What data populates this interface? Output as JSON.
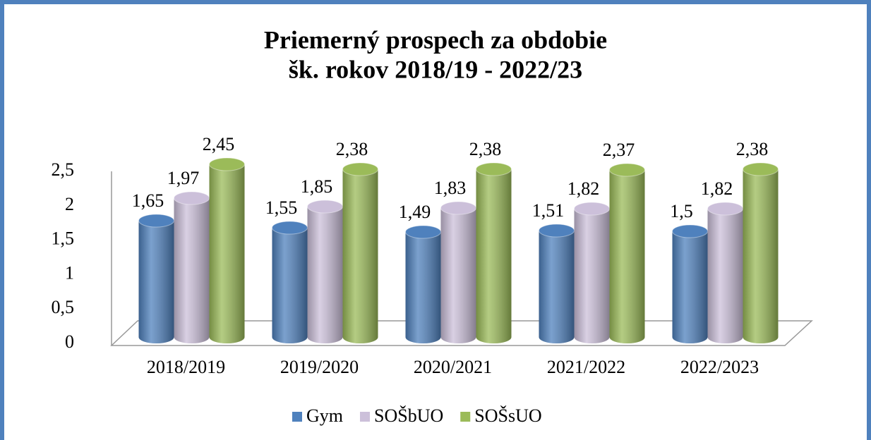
{
  "chart_data": {
    "type": "bar3d",
    "title": [
      "Priemerný prospech za obdobie",
      "šk. rokov 2018/19 - 2022/23"
    ],
    "categories": [
      "2018/2019",
      "2019/2020",
      "2020/2021",
      "2021/2022",
      "2022/2023"
    ],
    "series": [
      {
        "name": "Gym",
        "color": "#4f81bd",
        "values": [
          1.65,
          1.55,
          1.49,
          1.51,
          1.5
        ],
        "value_labels": [
          "1,65",
          "1,55",
          "1,49",
          "1,51",
          "1,5"
        ]
      },
      {
        "name": "SOŠbUO",
        "color": "#ccc0da",
        "values": [
          1.97,
          1.85,
          1.83,
          1.82,
          1.82
        ],
        "value_labels": [
          "1,97",
          "1,85",
          "1,83",
          "1,82",
          "1,82"
        ]
      },
      {
        "name": "SOŠsUO",
        "color": "#9bbb59",
        "values": [
          2.45,
          2.38,
          2.38,
          2.37,
          2.38
        ],
        "value_labels": [
          "2,45",
          "2,38",
          "2,38",
          "2,37",
          "2,38"
        ]
      }
    ],
    "ylim": [
      0,
      2.5
    ],
    "yticks": [
      0,
      {
        "value": 0.5,
        "label": "0,5"
      },
      1,
      {
        "value": 1.5,
        "label": "1,5"
      },
      2,
      {
        "value": 2.5,
        "label": "2,5"
      }
    ],
    "legend": "bottom"
  }
}
